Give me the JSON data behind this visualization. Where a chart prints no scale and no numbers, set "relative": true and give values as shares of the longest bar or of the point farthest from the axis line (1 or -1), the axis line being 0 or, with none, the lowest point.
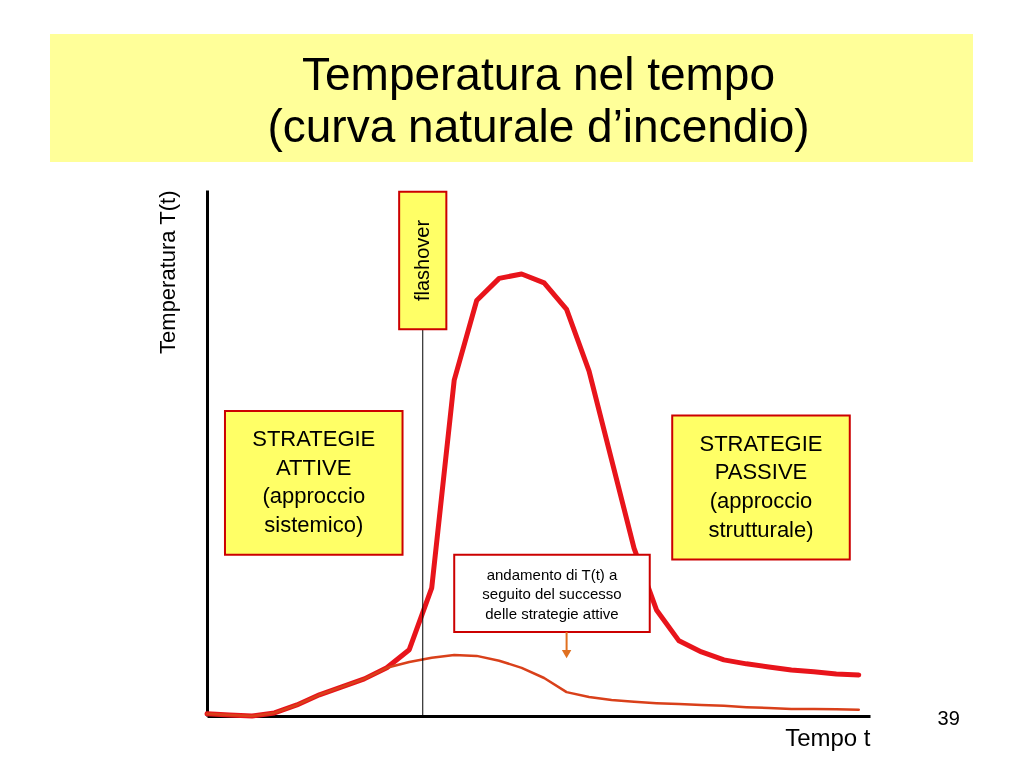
{
  "chart_data": {
    "type": "line",
    "title": "Temperatura nel tempo\n(curva naturale d’incendio)",
    "xlabel": "Tempo t",
    "ylabel": "Temperatura T(t)",
    "relative": true,
    "tick_labels": false,
    "legend": false,
    "marker": "none",
    "grid": false,
    "categories": [
      null,
      null,
      null,
      null,
      null,
      null,
      null,
      null,
      null,
      null,
      null,
      null,
      null,
      null,
      null,
      null,
      null,
      null,
      null,
      null,
      null,
      null,
      null,
      null,
      null,
      null,
      null,
      null,
      null,
      null
    ],
    "series": [
      {
        "color": "#e8141b",
        "values": [
          0.005,
          0.002,
          0,
          0.007,
          0.025,
          0.048,
          0.066,
          0.084,
          0.109,
          0.15,
          0.29,
          0.76,
          0.94,
          0.99,
          1,
          0.98,
          0.92,
          0.78,
          0.58,
          0.38,
          0.24,
          0.17,
          0.145,
          0.127,
          0.118,
          0.111,
          0.104,
          0.1,
          0.095,
          0.093
        ]
      },
      {
        "color": "#d9401a",
        "values": [
          0.005,
          0.002,
          0,
          0.007,
          0.025,
          0.048,
          0.066,
          0.084,
          0.109,
          0.122,
          0.132,
          0.138,
          0.136,
          0.125,
          0.109,
          0.086,
          0.054,
          0.043,
          0.036,
          0.032,
          0.029,
          0.027,
          0.025,
          0.023,
          0.02,
          0.018,
          0.016,
          0.016,
          0.015,
          0.014
        ]
      }
    ],
    "annotations": [
      "flashover",
      "STRATEGIE\nATTIVE\n(approccio\nsistemico)",
      "STRATEGIE\nPASSIVE\n(approccio\nstrutturale)",
      "andamento di T(t) a\nseguito del successo\ndelle strategie attive",
      "39"
    ]
  }
}
